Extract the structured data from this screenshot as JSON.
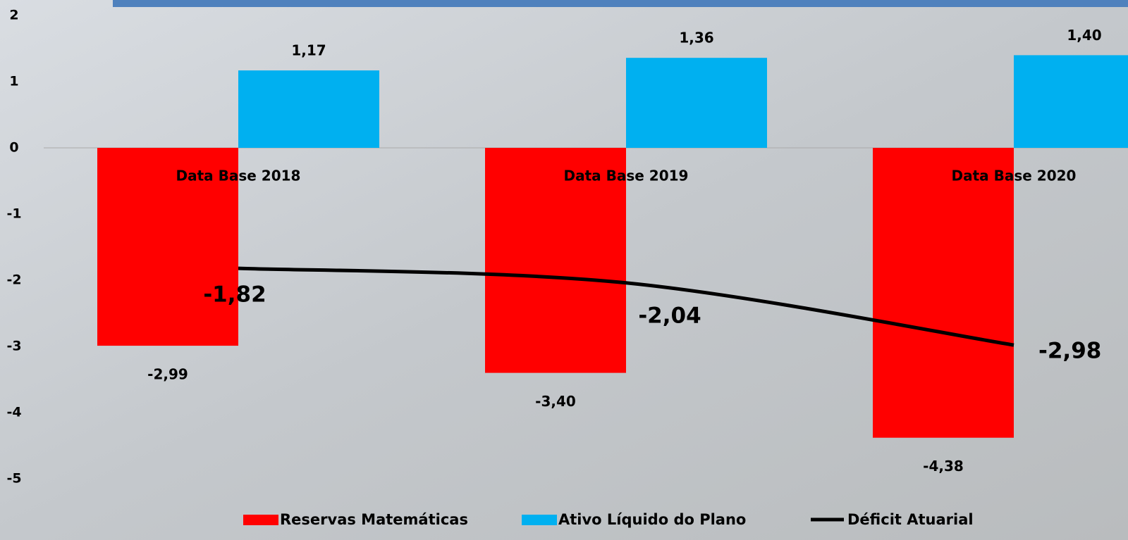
{
  "chart_data": {
    "type": "bar",
    "categories": [
      "Data Base 2018",
      "Data Base 2019",
      "Data Base 2020"
    ],
    "series": [
      {
        "name": "Reservas Matemáticas",
        "color": "#ff0000",
        "values": [
          -2.99,
          -3.4,
          -4.38
        ],
        "value_labels": [
          "-2,99",
          "-3,40",
          "-4,38"
        ]
      },
      {
        "name": "Ativo Líquido do Plano",
        "color": "#00b0f0",
        "values": [
          1.17,
          1.36,
          1.4
        ],
        "value_labels": [
          "1,17",
          "1,36",
          "1,40"
        ]
      },
      {
        "name": "Déficit Atuarial",
        "color": "#000000",
        "type": "line",
        "values": [
          -1.82,
          -2.04,
          -2.98
        ],
        "value_labels": [
          "-1,82",
          "-2,04",
          "-2,98"
        ]
      }
    ],
    "ylim": [
      -5,
      2
    ],
    "yticks": [
      2,
      1,
      0,
      -1,
      -2,
      -3,
      -4,
      -5
    ]
  }
}
